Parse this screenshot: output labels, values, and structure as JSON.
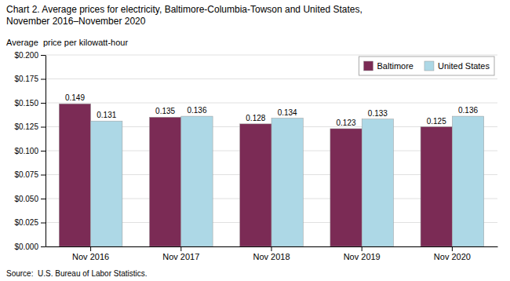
{
  "chart_data": {
    "type": "bar",
    "title": [
      "Chart 2. Average prices for electricity, Baltimore-Columbia-Towson and United States,",
      "November 2016–November 2020"
    ],
    "ylabel": "Average  price per kilowatt-hour",
    "source": "Source:  U.S. Bureau of Labor Statistics.",
    "categories": [
      "Nov 2016",
      "Nov 2017",
      "Nov 2018",
      "Nov 2019",
      "Nov 2020"
    ],
    "series": [
      {
        "name": "Baltimore",
        "color": "#7B2B55",
        "values": [
          0.149,
          0.135,
          0.128,
          0.123,
          0.125
        ]
      },
      {
        "name": "United States",
        "color": "#ADD8E6",
        "values": [
          0.131,
          0.136,
          0.134,
          0.133,
          0.136
        ]
      }
    ],
    "ylim": [
      0.0,
      0.2
    ],
    "yticks": [
      {
        "value": 0.0,
        "label": "$0.000"
      },
      {
        "value": 0.025,
        "label": "$0.025"
      },
      {
        "value": 0.05,
        "label": "$0.050"
      },
      {
        "value": 0.075,
        "label": "$0.075"
      },
      {
        "value": 0.1,
        "label": "$0.100"
      },
      {
        "value": 0.125,
        "label": "$0.125"
      },
      {
        "value": 0.15,
        "label": "$0.150"
      },
      {
        "value": 0.175,
        "label": "$0.175"
      },
      {
        "value": 0.2,
        "label": "$0.200"
      }
    ],
    "grid": true,
    "legend": "upper right",
    "data_labels": true
  }
}
